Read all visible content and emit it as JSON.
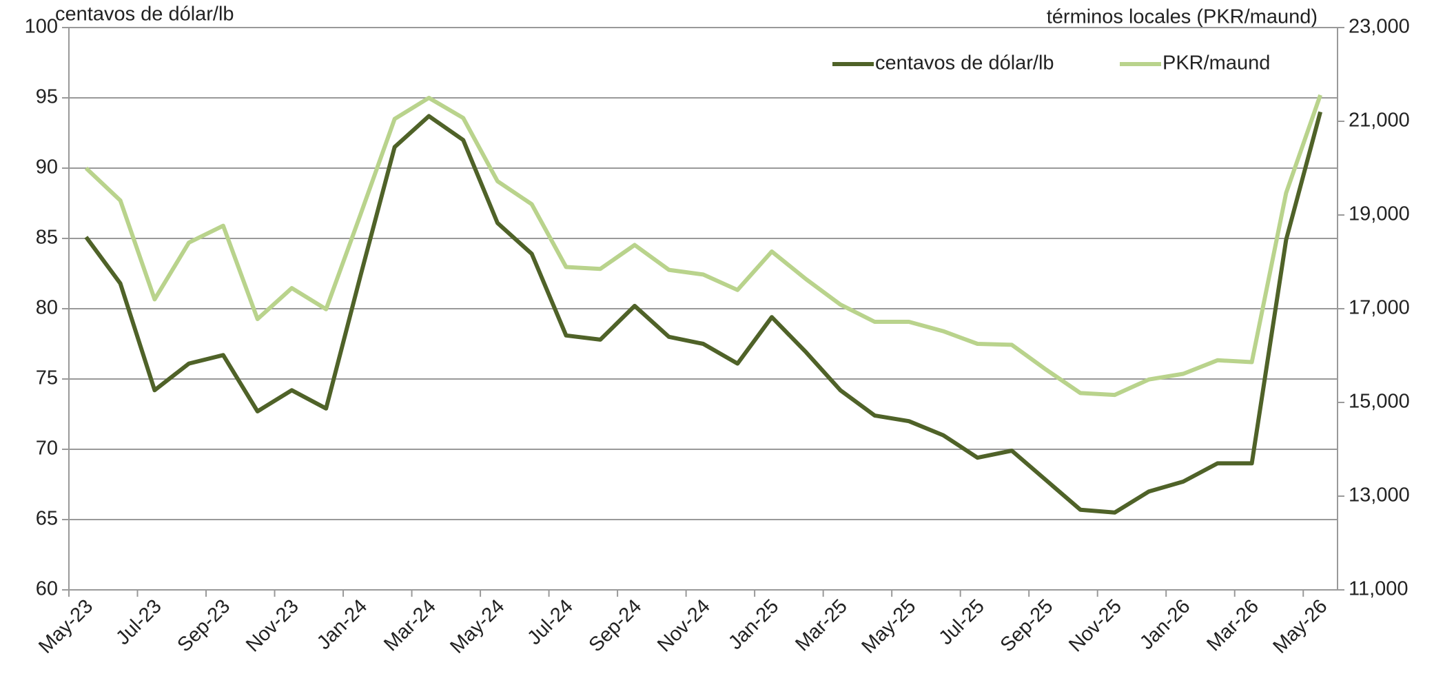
{
  "chart_data": {
    "type": "line",
    "y_label": "centavos de dólar/lb",
    "y2_label": "términos locales (PKR/maund)",
    "categories": [
      "May-23",
      null,
      "Jul-23",
      null,
      "Sep-23",
      null,
      "Nov-23",
      null,
      "Jan-24",
      null,
      "Mar-24",
      null,
      "May-24",
      null,
      "Jul-24",
      null,
      "Sep-24",
      null,
      "Nov-24",
      null,
      "Jan-25",
      null,
      "Mar-25",
      null,
      "May-25",
      null,
      "Jul-25",
      null,
      "Sep-25",
      null,
      "Nov-25",
      null,
      "Jan-26",
      null,
      "Mar-26",
      null,
      "May-26"
    ],
    "series": [
      {
        "name": "centavos de dólar/lb",
        "color": "#4f6228",
        "axis": "y",
        "values": [
          85.1,
          81.8,
          74.2,
          76.1,
          76.7,
          72.7,
          74.2,
          72.9,
          82.3,
          91.5,
          93.7,
          92.0,
          86.1,
          83.9,
          78.1,
          77.8,
          80.2,
          78.0,
          77.5,
          76.1,
          79.4,
          76.9,
          74.2,
          72.4,
          72.0,
          71.0,
          69.4,
          69.9,
          67.8,
          65.7,
          65.5,
          67.0,
          67.7,
          69.0,
          69.0,
          84.9,
          94.0
        ]
      },
      {
        "name": "PKR/maund",
        "color": "#b9d38c",
        "axis": "y2",
        "values": [
          20000,
          19310,
          17200,
          18410,
          18770,
          16780,
          17440,
          16990,
          19000,
          21050,
          21500,
          21070,
          19720,
          19230,
          17890,
          17850,
          18360,
          17830,
          17730,
          17400,
          18220,
          17630,
          17090,
          16720,
          16720,
          16520,
          16250,
          16230,
          15700,
          15200,
          15160,
          15490,
          15610,
          15900,
          15860,
          19470,
          21560
        ]
      }
    ],
    "ylim": [
      60,
      100
    ],
    "yticks": [
      60,
      65,
      70,
      75,
      80,
      85,
      90,
      95,
      100
    ],
    "y2lim": [
      11000,
      23000
    ],
    "y2ticks": [
      {
        "value": 11000,
        "label": "11,000"
      },
      {
        "value": 13000,
        "label": "13,000"
      },
      {
        "value": 15000,
        "label": "15,000"
      },
      {
        "value": 17000,
        "label": "17,000"
      },
      {
        "value": 19000,
        "label": "19,000"
      },
      {
        "value": 21000,
        "label": "21,000"
      },
      {
        "value": 23000,
        "label": "23,000"
      }
    ],
    "grid": true,
    "legend": "top-right"
  }
}
